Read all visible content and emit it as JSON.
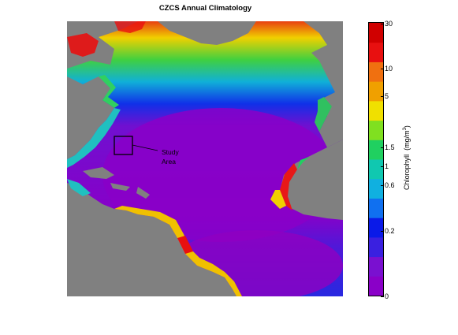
{
  "title": "CZCS Annual Climatology",
  "study_area": {
    "line1": "Study",
    "line2": "Area"
  },
  "colorbar": {
    "label": "Chlorophyll  (mg/m³)",
    "ticks": [
      "30",
      "10",
      "5",
      "1.5",
      "1",
      "0.6",
      "0.2",
      "0"
    ],
    "colors": [
      "#8a00c8",
      "#7a10d0",
      "#3a20e0",
      "#0a1ae8",
      "#1070f0",
      "#10b0e0",
      "#10c8b0",
      "#20d060",
      "#80e020",
      "#f0e000",
      "#f0a000",
      "#f07010",
      "#e81010",
      "#d00000"
    ]
  },
  "colors": {
    "land": "#808080",
    "ocean_oligotrophic": "#8a00c8",
    "ocean_mid": "#1a20e0",
    "ocean_rich": "#20c860",
    "coastal": "#e81010"
  }
}
